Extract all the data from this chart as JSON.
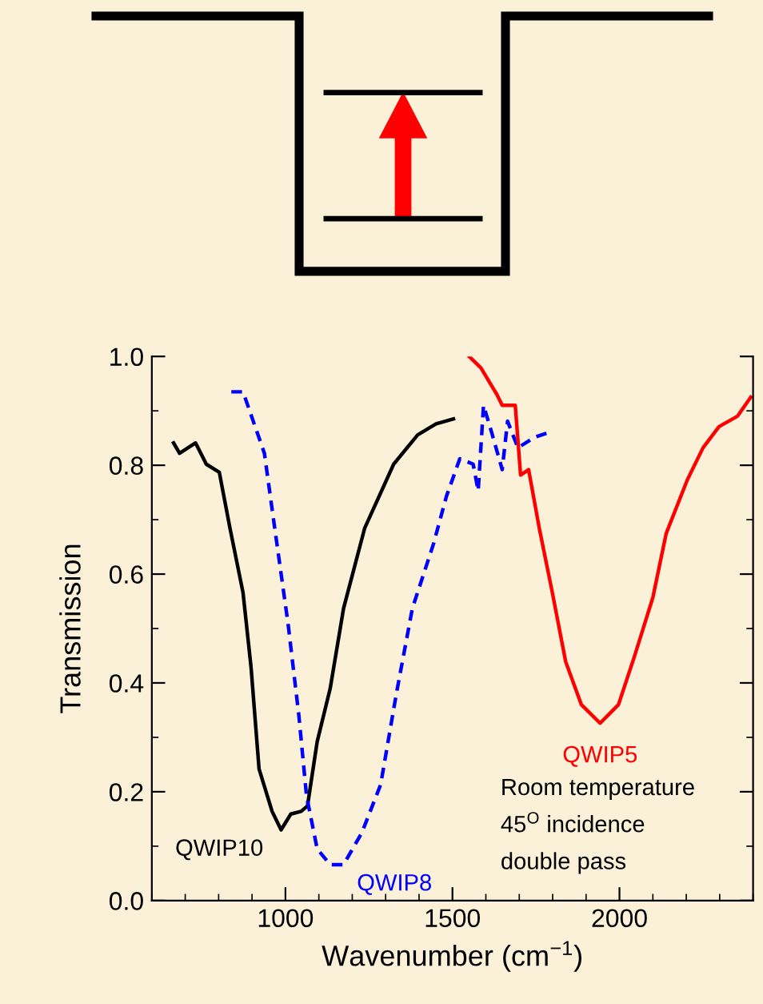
{
  "chart_data": {
    "type": "line",
    "xlabel": "Wavenumber (cm$^{−1}$)",
    "ylabel": "Transmission",
    "xlim": [
      600,
      2400
    ],
    "xticks": [
      1000,
      1500,
      2000
    ],
    "ylim": [
      0.0,
      1.0
    ],
    "yticks": [
      {
        "value": 0,
        "label": "0.0"
      },
      0.2,
      0.4,
      0.6,
      0.8,
      {
        "value": 1,
        "label": "1.0"
      }
    ],
    "grid": false,
    "legend": false,
    "marker": "none",
    "series": [
      {
        "color": "#000000",
        "line_style": "solid",
        "x": [
          665,
          683,
          731,
          763,
          802,
          834,
          873,
          897,
          921,
          960,
          987,
          1016,
          1047,
          1066,
          1095,
          1134,
          1174,
          1237,
          1324,
          1396,
          1451,
          1503
        ],
        "values": [
          0.841,
          0.822,
          0.841,
          0.802,
          0.787,
          0.684,
          0.566,
          0.429,
          0.242,
          0.164,
          0.13,
          0.159,
          0.164,
          0.174,
          0.292,
          0.39,
          0.537,
          0.684,
          0.802,
          0.856,
          0.876,
          0.885
        ]
      },
      {
        "color": "#0000ff",
        "line_style": "dashed",
        "x": [
          838,
          873,
          937,
          968,
          1008,
          1040,
          1063,
          1095,
          1134,
          1174,
          1229,
          1285,
          1332,
          1380,
          1443,
          1482,
          1522,
          1562,
          1577,
          1593,
          1617,
          1649,
          1665,
          1696,
          1744,
          1791
        ],
        "values": [
          0.935,
          0.935,
          0.822,
          0.684,
          0.508,
          0.341,
          0.193,
          0.095,
          0.066,
          0.066,
          0.125,
          0.213,
          0.38,
          0.537,
          0.655,
          0.743,
          0.812,
          0.802,
          0.753,
          0.91,
          0.861,
          0.792,
          0.881,
          0.832,
          0.851,
          0.861
        ]
      },
      {
        "color": "#ff0000",
        "line_style": "solid",
        "x": [
          1550,
          1585,
          1633,
          1649,
          1688,
          1704,
          1728,
          1760,
          1799,
          1839,
          1886,
          1942,
          1997,
          2045,
          2100,
          2140,
          2203,
          2250,
          2298,
          2353,
          2393
        ],
        "values": [
          1.0,
          0.979,
          0.93,
          0.91,
          0.91,
          0.782,
          0.792,
          0.684,
          0.566,
          0.439,
          0.36,
          0.326,
          0.36,
          0.449,
          0.557,
          0.675,
          0.773,
          0.832,
          0.871,
          0.89,
          0.925
        ]
      }
    ],
    "annotations": [
      {
        "text": "QWIP10",
        "x": 987,
        "y": 0.13
      },
      {
        "text": "QWIP8",
        "x": 1174,
        "y": 0.066
      },
      {
        "text": "QWIP5",
        "x": 1942,
        "y": 0.326
      },
      "Room temperature",
      "45$^{O}$ incidence",
      "double pass"
    ]
  }
}
